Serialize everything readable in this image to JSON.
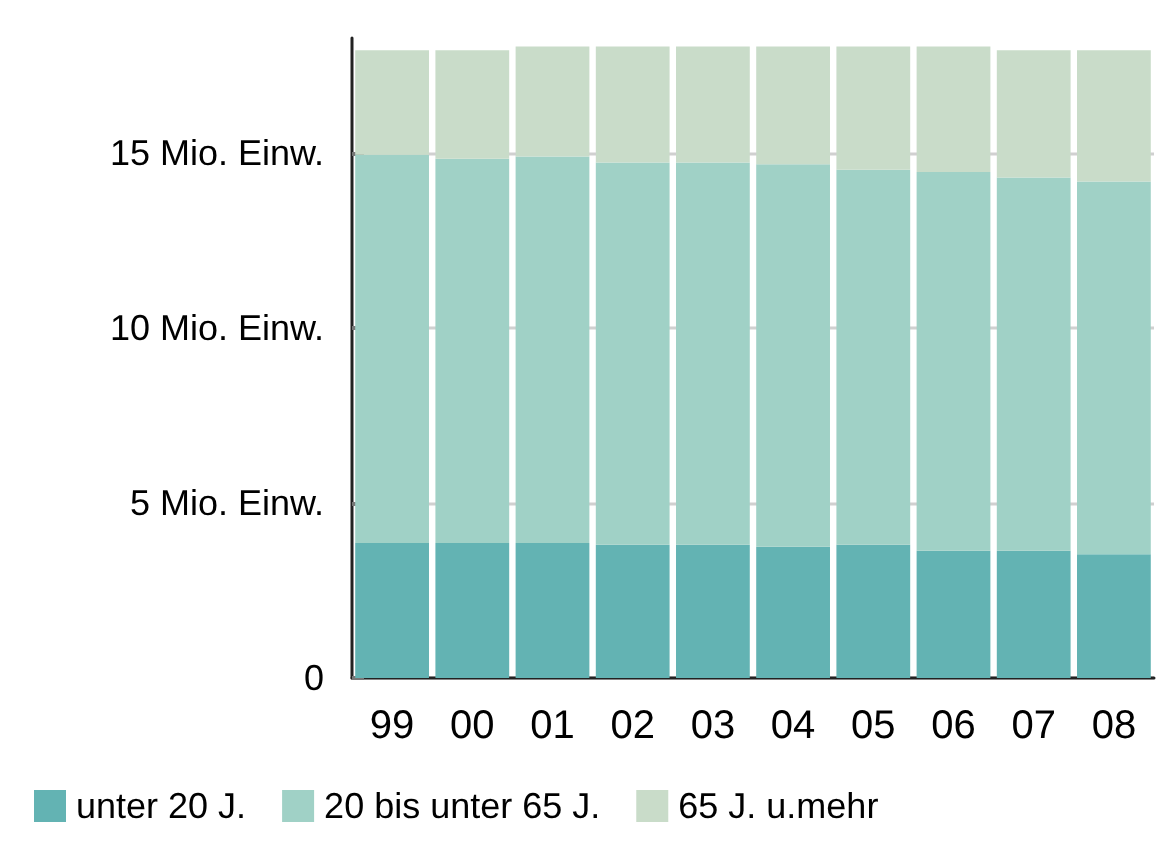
{
  "chart_data": {
    "type": "bar",
    "stacked": true,
    "categories": [
      "99",
      "00",
      "01",
      "02",
      "03",
      "04",
      "05",
      "06",
      "07",
      "08"
    ],
    "series": [
      {
        "name": "unter 20 J.",
        "color": "#63b3b3",
        "values": [
          3.86,
          3.86,
          3.86,
          3.81,
          3.81,
          3.75,
          3.81,
          3.64,
          3.64,
          3.54
        ]
      },
      {
        "name": "20 bis unter 65 J.",
        "color": "#a0d1c6",
        "values": [
          11.1,
          10.99,
          11.05,
          10.93,
          10.93,
          10.94,
          10.72,
          10.83,
          10.67,
          10.66
        ]
      },
      {
        "name": "65 J. u.mehr",
        "color": "#c9dcc9",
        "values": [
          2.99,
          3.1,
          3.15,
          3.32,
          3.32,
          3.37,
          3.53,
          3.59,
          3.64,
          3.75
        ]
      }
    ],
    "ylim": [
      0,
      18.3
    ],
    "yticks": [
      0,
      {
        "value": 5,
        "label": "5 Mio. Einw."
      },
      {
        "value": 10,
        "label": "10 Mio. Einw."
      },
      {
        "value": 15,
        "label": "15 Mio. Einw."
      }
    ],
    "grid": "y",
    "legend": "bottom left"
  }
}
